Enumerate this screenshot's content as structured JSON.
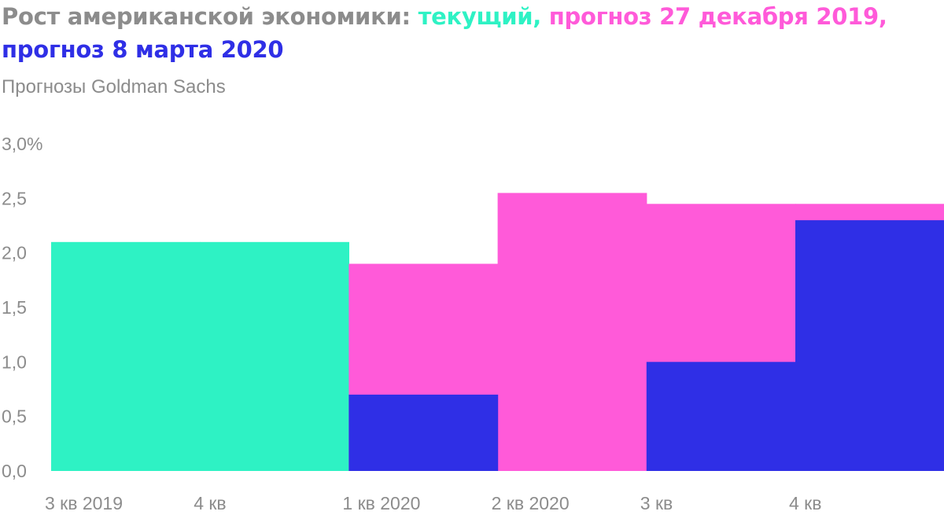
{
  "title": {
    "prefix": "Рост американской экономики: ",
    "current": "текущий,",
    "sep1": " ",
    "forecast_dec": "прогноз 27 декабря 2019,",
    "sep2": " ",
    "forecast_mar": "прогноз 8 марта 2020"
  },
  "subtitle": "Прогнозы Goldman Sachs",
  "colors": {
    "current": "#2ef2c4",
    "forecast_dec": "#ff5ad9",
    "forecast_mar": "#2f2fe6",
    "text": "#8c8c8c"
  },
  "chart_data": {
    "type": "area",
    "step": true,
    "title": "Рост американской экономики: текущий, прогноз 27 декабря 2019, прогноз 8 марта 2020",
    "subtitle": "Прогнозы Goldman Sachs",
    "categories": [
      "3 кв 2019",
      "4 кв",
      "1 кв 2020",
      "2 кв 2020",
      "3 кв",
      "4 кв"
    ],
    "y_ticks": [
      "0,0",
      "0,5",
      "1,0",
      "1,5",
      "2,0",
      "2,5",
      "3,0%"
    ],
    "ylim": [
      0,
      3
    ],
    "grid": false,
    "legend": "in title",
    "series": [
      {
        "name": "текущий",
        "color": "#2ef2c4",
        "values": [
          2.1,
          2.1,
          null,
          null,
          null,
          null
        ]
      },
      {
        "name": "прогноз 27 декабря 2019",
        "color": "#ff5ad9",
        "values": [
          null,
          null,
          1.9,
          2.55,
          2.45,
          2.45
        ]
      },
      {
        "name": "прогноз 8 марта 2020",
        "color": "#2f2fe6",
        "values": [
          null,
          null,
          0.7,
          0.0,
          1.0,
          2.3
        ]
      }
    ]
  }
}
